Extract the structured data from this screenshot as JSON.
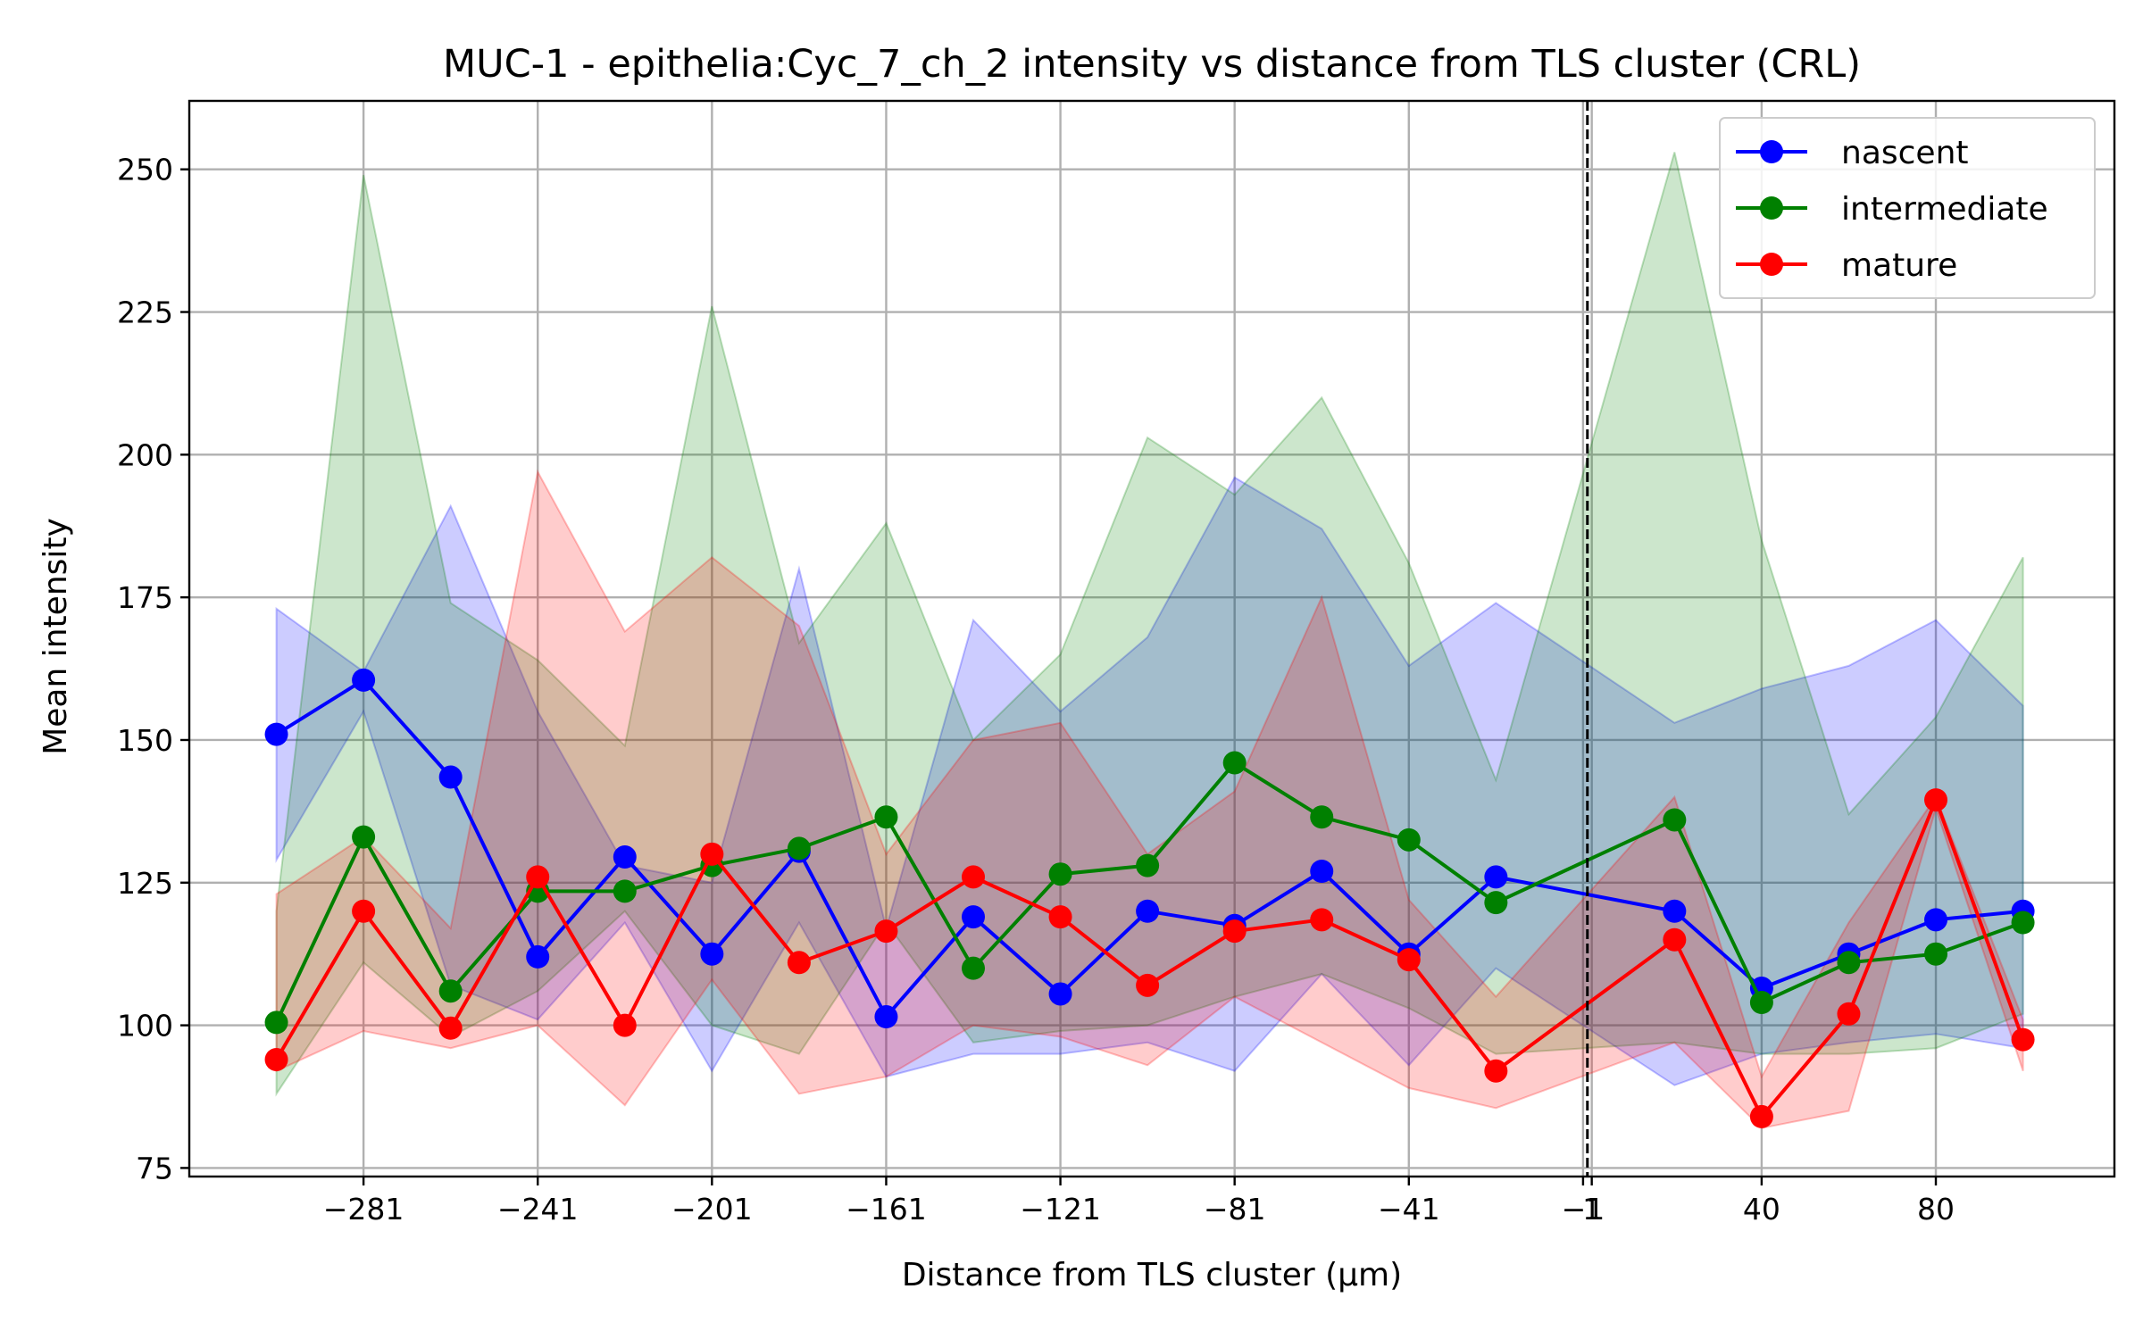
{
  "chart_data": {
    "type": "line",
    "title": "MUC-1 - epithelia:Cyc_7_ch_2 intensity vs distance from TLS cluster (CRL)",
    "xlabel": "Distance from TLS cluster (μm)",
    "ylabel": "Mean intensity",
    "xlim": [
      -321,
      121
    ],
    "ylim": [
      73.5,
      262
    ],
    "xticks": [
      -281,
      -241,
      -201,
      -161,
      -121,
      -81,
      -41,
      -1,
      1,
      40,
      80
    ],
    "xtick_labels": [
      "−281",
      "−241",
      "−201",
      "−161",
      "−121",
      "−81",
      "−41",
      "−1",
      "1",
      "40",
      "80"
    ],
    "yticks": [
      75,
      100,
      125,
      150,
      175,
      200,
      225,
      250
    ],
    "ytick_labels": [
      "75",
      "100",
      "125",
      "150",
      "175",
      "200",
      "225",
      "250"
    ],
    "grid": true,
    "legend_position": "top-right",
    "reference_line_x": 0,
    "series": [
      {
        "name": "nascent",
        "color": "#0000ff",
        "x": [
          -301,
          -281,
          -261,
          -241,
          -221,
          -201,
          -181,
          -161,
          -141,
          -121,
          -101,
          -81,
          -61,
          -41,
          -21,
          20,
          40,
          60,
          80,
          100
        ],
        "y": [
          151,
          160.5,
          143.5,
          112,
          129.5,
          112.5,
          130.5,
          101.5,
          119,
          105.5,
          120,
          117.5,
          127,
          112.5,
          126,
          120,
          106.5,
          112.5,
          118.5,
          120
        ],
        "upper": [
          173,
          162,
          191,
          155,
          128,
          125,
          180,
          117,
          171,
          155,
          168,
          196,
          187,
          163,
          174,
          153,
          159,
          163,
          171,
          156
        ],
        "lower": [
          129,
          155,
          107,
          101,
          118,
          92,
          118,
          91,
          95,
          95,
          97,
          92,
          109,
          93,
          110,
          89.5,
          95,
          97,
          98.5,
          96
        ]
      },
      {
        "name": "intermediate",
        "color": "#008000",
        "x": [
          -301,
          -281,
          -261,
          -241,
          -221,
          -201,
          -181,
          -161,
          -141,
          -121,
          -101,
          -81,
          -61,
          -41,
          -21,
          20,
          40,
          60,
          80,
          100
        ],
        "y": [
          100.5,
          133,
          106,
          123.5,
          123.5,
          128,
          131,
          136.5,
          110,
          126.5,
          128,
          146,
          136.5,
          132.5,
          121.5,
          136,
          104,
          111,
          112.5,
          118
        ],
        "upper": [
          120,
          249,
          174,
          164,
          149,
          226,
          167,
          188,
          150,
          165,
          203,
          193,
          210,
          181,
          143,
          253,
          185,
          137,
          154,
          182
        ],
        "lower": [
          88,
          111,
          98,
          106,
          120,
          100,
          95,
          118,
          97,
          99,
          100,
          105,
          109,
          103,
          95,
          97,
          95,
          95,
          96,
          102
        ]
      },
      {
        "name": "mature",
        "color": "#ff0000",
        "x": [
          -301,
          -281,
          -261,
          -241,
          -221,
          -201,
          -181,
          -161,
          -141,
          -121,
          -101,
          -81,
          -61,
          -41,
          -21,
          20,
          40,
          60,
          80,
          100
        ],
        "y": [
          94,
          120,
          99.5,
          126,
          100,
          130,
          111,
          116.5,
          126,
          119,
          107,
          116.5,
          118.5,
          111.5,
          92,
          115,
          84,
          102,
          139.5,
          97.5
        ],
        "upper": [
          123,
          133,
          117,
          197,
          169,
          182,
          170,
          130,
          150,
          153,
          130,
          141,
          175,
          122,
          105,
          140,
          91,
          118,
          140,
          101
        ],
        "lower": [
          92,
          99,
          96,
          100,
          86,
          108,
          88,
          91,
          100,
          98,
          93,
          105,
          97,
          89,
          85.5,
          97,
          82,
          85,
          138,
          92
        ]
      }
    ]
  }
}
